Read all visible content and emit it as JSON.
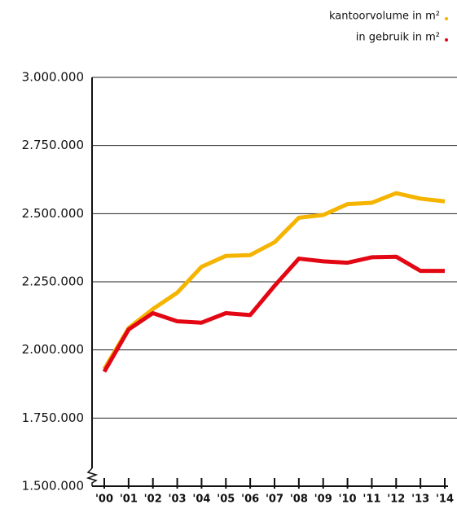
{
  "chart_data": {
    "type": "line",
    "categories": [
      "'00",
      "'01",
      "'02",
      "'03",
      "'04",
      "'05",
      "'06",
      "'07",
      "'08",
      "'09",
      "'10",
      "'11",
      "'12",
      "'13",
      "'14"
    ],
    "series": [
      {
        "name": "kantoorvolume in m²",
        "color": "#f5b400",
        "values": [
          1930000,
          2080000,
          2150000,
          2210000,
          2305000,
          2345000,
          2348000,
          2395000,
          2485000,
          2495000,
          2535000,
          2540000,
          2575000,
          2555000,
          2545000
        ]
      },
      {
        "name": "in gebruik in m²",
        "color": "#e30613",
        "values": [
          1920000,
          2075000,
          2135000,
          2105000,
          2100000,
          2135000,
          2128000,
          2235000,
          2335000,
          2325000,
          2320000,
          2340000,
          2342000,
          2290000,
          2290000
        ]
      }
    ],
    "ylim": [
      1500000,
      3000000
    ],
    "yticks": [
      {
        "value": 1500000,
        "label": "1.500.000"
      },
      {
        "value": 1750000,
        "label": "1.750.000"
      },
      {
        "value": 2000000,
        "label": "2.000.000"
      },
      {
        "value": 2250000,
        "label": "2.250.000"
      },
      {
        "value": 2500000,
        "label": "2.500.000"
      },
      {
        "value": 2750000,
        "label": "2.750.000"
      },
      {
        "value": 3000000,
        "label": "3.000.000"
      }
    ],
    "grid": true,
    "legend": "top-right"
  }
}
